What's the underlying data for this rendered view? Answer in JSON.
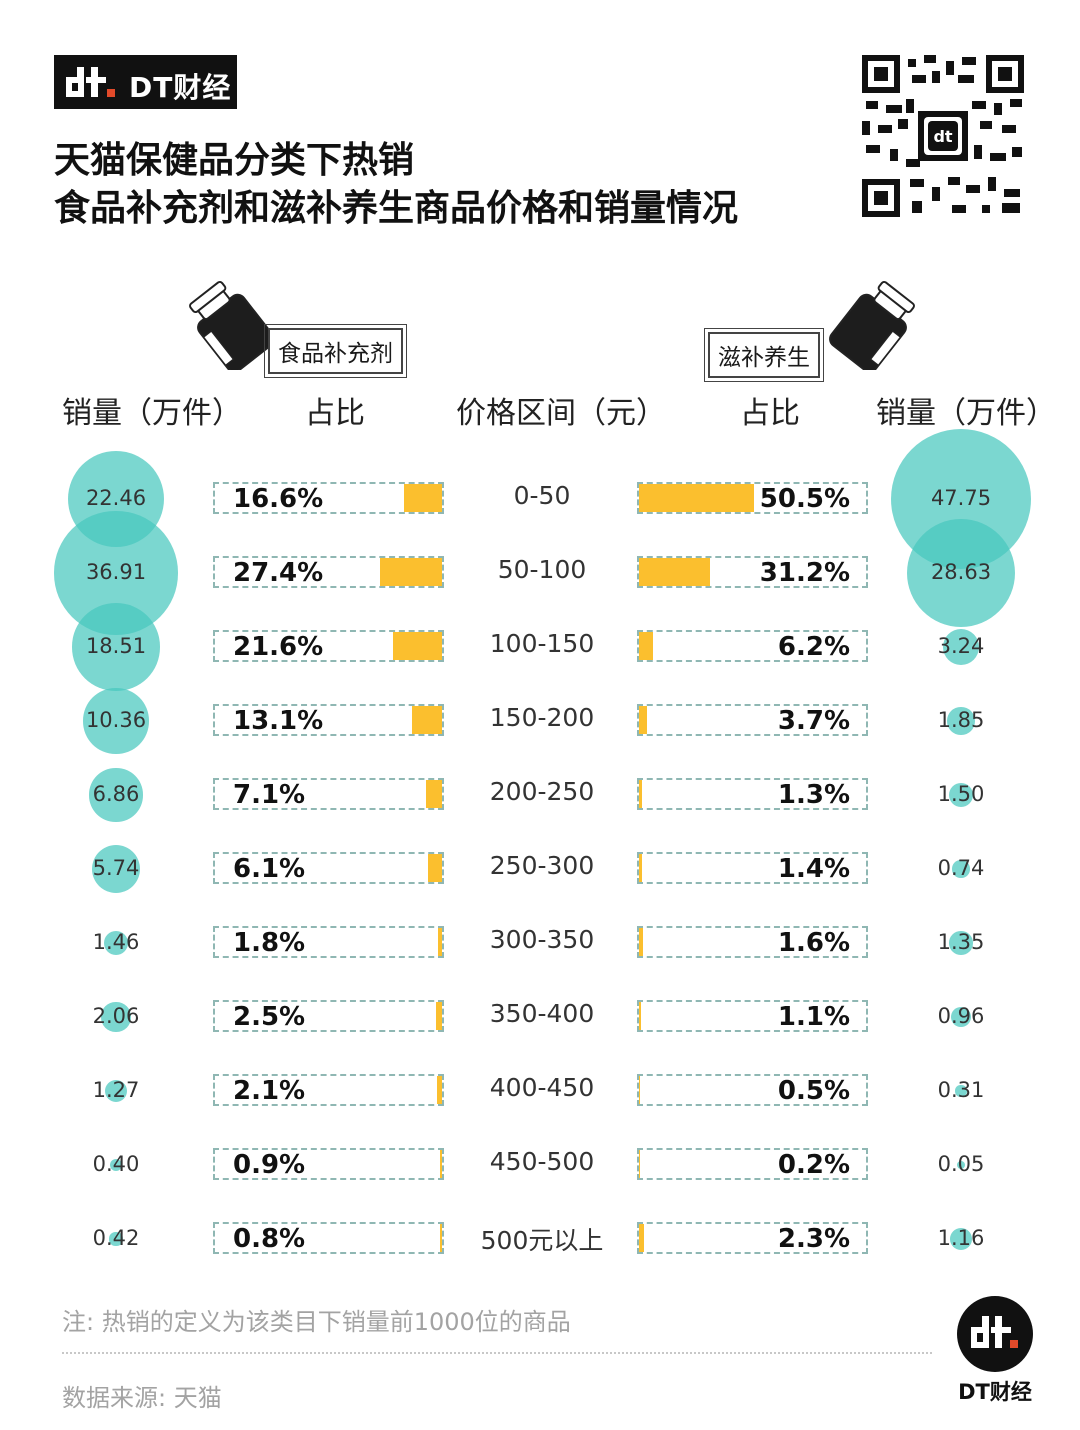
{
  "brand": {
    "name": "DT财经",
    "logo_mark": "dt-logo-icon"
  },
  "title": {
    "line1": "天猫保健品分类下热销",
    "line2": "食品补充剂和滋补养生商品价格和销量情况"
  },
  "categories": {
    "left": "食品补充剂",
    "right": "滋补养生"
  },
  "column_headers": {
    "left_sales": "销量（万件）",
    "left_share": "占比",
    "price": "价格区间（元）",
    "right_share": "占比",
    "right_sales": "销量（万件）"
  },
  "colors": {
    "bubble": "#48c8be",
    "bar": "#fbbf2e",
    "dash": "#8fb7b3"
  },
  "chart_data": {
    "type": "table",
    "price_ranges": [
      "0-50",
      "50-100",
      "100-150",
      "150-200",
      "200-250",
      "250-300",
      "300-350",
      "350-400",
      "400-450",
      "450-500",
      "500元以上"
    ],
    "series": [
      {
        "name": "食品补充剂",
        "sales": [
          22.46,
          36.91,
          18.51,
          10.36,
          6.86,
          5.74,
          1.46,
          2.06,
          1.27,
          0.4,
          0.42
        ],
        "sales_labels": [
          "22.46",
          "36.91",
          "18.51",
          "10.36",
          "6.86",
          "5.74",
          "1.46",
          "2.06",
          "1.27",
          "0.40",
          "0.42"
        ],
        "share": [
          16.6,
          27.4,
          21.6,
          13.1,
          7.1,
          6.1,
          1.8,
          2.5,
          2.1,
          0.9,
          0.8
        ],
        "share_labels": [
          "16.6%",
          "27.4%",
          "21.6%",
          "13.1%",
          "7.1%",
          "6.1%",
          "1.8%",
          "2.5%",
          "2.1%",
          "0.9%",
          "0.8%"
        ]
      },
      {
        "name": "滋补养生",
        "sales": [
          47.75,
          28.63,
          3.24,
          1.85,
          1.5,
          0.74,
          1.35,
          0.96,
          0.31,
          0.05,
          1.16
        ],
        "sales_labels": [
          "47.75",
          "28.63",
          "3.24",
          "1.85",
          "1.50",
          "0.74",
          "1.35",
          "0.96",
          "0.31",
          "0.05",
          "1.16"
        ],
        "share": [
          50.5,
          31.2,
          6.2,
          3.7,
          1.3,
          1.4,
          1.6,
          1.1,
          0.5,
          0.2,
          2.3
        ],
        "share_labels": [
          "50.5%",
          "31.2%",
          "6.2%",
          "3.7%",
          "1.3%",
          "1.4%",
          "1.6%",
          "1.1%",
          "0.5%",
          "0.2%",
          "2.3%"
        ]
      }
    ]
  },
  "footer": {
    "note": "注: 热销的定义为该类目下销量前1000位的商品",
    "source": "数据来源: 天猫"
  }
}
